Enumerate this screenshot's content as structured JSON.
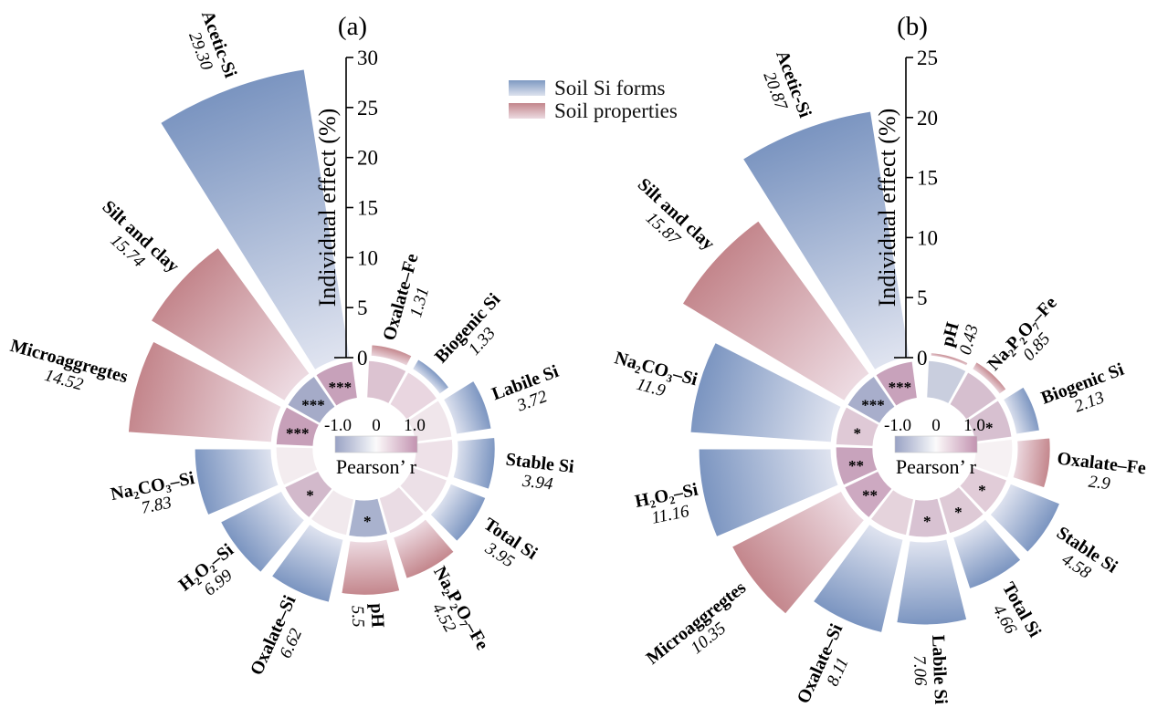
{
  "legend": {
    "items": [
      {
        "label": "Soil Si forms",
        "swatch": "blue-gradient-swatch"
      },
      {
        "label": "Soil properties",
        "swatch": "pink-gradient-swatch"
      }
    ]
  },
  "colorbar": {
    "title": "Pearson’ r",
    "min_label": "-1.0",
    "mid_label": "0",
    "max_label": "1.0",
    "range": [
      -1,
      1
    ],
    "negative_color": "#99a2c4",
    "mid_color": "#fbfafb",
    "positive_color": "#c292b0"
  },
  "colors": {
    "si_form_tip": "#7a94c0",
    "si_form_base": "#e0e4f0",
    "property_tip": "#c3858b",
    "property_base": "#eddbe2"
  },
  "chart_data": [
    {
      "type": "bar",
      "subtype": "polar-radial-bar-with-correlation-ring",
      "panel_label": "(a)",
      "axis": {
        "label": "Individual effect (%)",
        "min": 0,
        "max": 30,
        "ticks": [
          0,
          5,
          10,
          15,
          20,
          25,
          30
        ]
      },
      "order": "clockwise-from-top",
      "categories": [
        "Oxalate–Fe",
        "Biogenic Si",
        "Labile Si",
        "Stable Si",
        "Total Si",
        "Na₂P₂O₇–Fe",
        "pH",
        "Oxalate–Si",
        "H₂O₂–Si",
        "Na₂CO₃–Si",
        "Microaggregtes",
        "Silt and clay",
        "Acetic-Si"
      ],
      "values": [
        1.31,
        1.33,
        3.72,
        3.94,
        3.95,
        4.52,
        5.5,
        6.62,
        6.99,
        7.83,
        14.52,
        15.74,
        29.3
      ],
      "value_labels": [
        "1.31",
        "1.33",
        "3.72",
        "3.94",
        "3.95",
        "4.52",
        "5.5",
        "6.62",
        "6.99",
        "7.83",
        "14.52",
        "15.74",
        "29.30"
      ],
      "groups": [
        "property",
        "si_form",
        "si_form",
        "si_form",
        "si_form",
        "property",
        "property",
        "si_form",
        "si_form",
        "si_form",
        "property",
        "property",
        "si_form"
      ],
      "significance": [
        "",
        "",
        "",
        "",
        "",
        "",
        "*",
        "",
        "*",
        "",
        "***",
        "***",
        "***"
      ],
      "ring_colors": [
        "#dcc3d1",
        "#e9d6e0",
        "#f0e6eb",
        "#eee1e8",
        "#ece0e7",
        "#eadce4",
        "#a9b2ce",
        "#f1e9ed",
        "#d2b9cb",
        "#f3ecef",
        "#c7a0b9",
        "#a5abc8",
        "#c7a1ba"
      ]
    },
    {
      "type": "bar",
      "subtype": "polar-radial-bar-with-correlation-ring",
      "panel_label": "(b)",
      "axis": {
        "label": "Individual effect (%)",
        "min": 0,
        "max": 25,
        "ticks": [
          0,
          5,
          10,
          15,
          20,
          25
        ]
      },
      "order": "clockwise-from-top",
      "categories": [
        "pH",
        "Na₂P₂O₇–Fe",
        "Biogenic Si",
        "Oxalate–Fe",
        "Stable Si",
        "Total Si",
        "Labile Si",
        "Oxalate–Si",
        "Microaggregtes",
        "H₂O₂–Si",
        "Na₂CO₃–Si",
        "Silt and clay",
        "Acetic-Si"
      ],
      "values": [
        0.43,
        0.85,
        2.13,
        2.9,
        4.58,
        4.66,
        7.06,
        8.11,
        10.35,
        11.16,
        11.9,
        15.87,
        20.87
      ],
      "value_labels": [
        "0.43",
        "0.85",
        "2.13",
        "2.9",
        "4.58",
        "4.66",
        "7.06",
        "8.11",
        "10.35",
        "11.16",
        "11.9",
        "15.87",
        "20.87"
      ],
      "groups": [
        "property",
        "property",
        "si_form",
        "property",
        "si_form",
        "si_form",
        "si_form",
        "si_form",
        "property",
        "si_form",
        "si_form",
        "property",
        "si_form"
      ],
      "significance": [
        "",
        "",
        "*",
        "",
        "*",
        "*",
        "*",
        "",
        "**",
        "**",
        "*",
        "***",
        "***"
      ],
      "ring_colors": [
        "#c9cede",
        "#d6bfcf",
        "#d7c0d0",
        "#f6f1f3",
        "#e1ccd8",
        "#decad6",
        "#d8c2d2",
        "#e5d3dc",
        "#cda9c1",
        "#c8a3bc",
        "#dfc9d6",
        "#a8aecb",
        "#c8a2bb"
      ]
    }
  ]
}
